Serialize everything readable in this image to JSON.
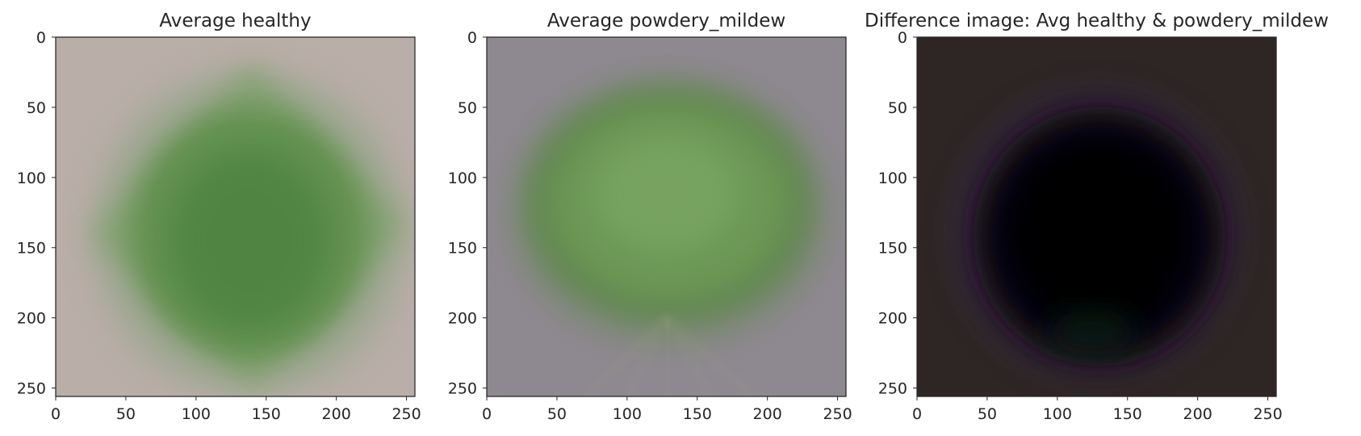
{
  "figure": {
    "kind": "image-comparison",
    "panel_count": 3
  },
  "chart_data": [
    {
      "type": "heatmap",
      "title": "Average healthy",
      "xlim": [
        0,
        256
      ],
      "ylim": [
        256,
        0
      ],
      "xticks": [
        0,
        50,
        100,
        150,
        200,
        250
      ],
      "yticks": [
        0,
        50,
        100,
        150,
        200,
        250
      ],
      "grid": false,
      "image": {
        "background": "#b9aea8",
        "blob_colors": [
          "#5f8f4c",
          "#4e8342",
          "#7ea06b"
        ],
        "edge_tint": "#8fa386",
        "description_shape": "diamond"
      }
    },
    {
      "type": "heatmap",
      "title": "Average powdery_mildew",
      "xlim": [
        0,
        256
      ],
      "ylim": [
        256,
        0
      ],
      "xticks": [
        0,
        50,
        100,
        150,
        200,
        250
      ],
      "yticks": [
        0,
        50,
        100,
        150,
        200,
        250
      ],
      "grid": false,
      "image": {
        "background": "#8e8890",
        "blob_colors": [
          "#6e9a57",
          "#7aa563",
          "#5d864b"
        ],
        "edge_tint": "#7d8a74",
        "description_shape": "ellipse"
      }
    },
    {
      "type": "heatmap",
      "title": "Difference image: Avg healthy & powdery_mildew",
      "xlim": [
        0,
        256
      ],
      "ylim": [
        256,
        0
      ],
      "xticks": [
        0,
        50,
        100,
        150,
        200,
        250
      ],
      "yticks": [
        0,
        50,
        100,
        150,
        200,
        250
      ],
      "grid": false,
      "image": {
        "background": "#2e2624",
        "blob_colors": [
          "#000000",
          "#060608",
          "#140f18"
        ],
        "edge_tint": "#3a2a4a",
        "description_shape": "ellipse"
      }
    }
  ]
}
